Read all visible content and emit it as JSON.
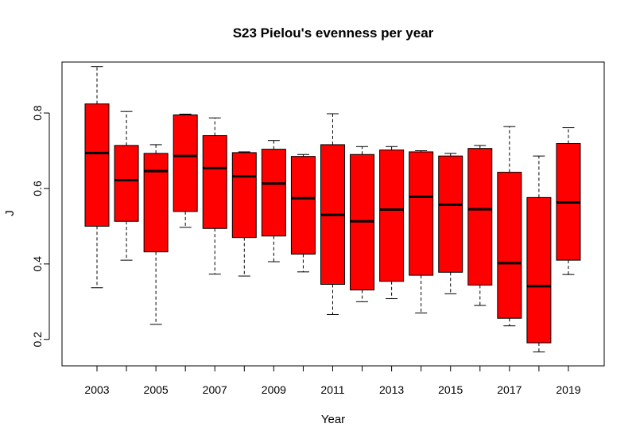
{
  "chart_data": {
    "type": "boxplot",
    "title": "S23 Pielou's evenness per year",
    "xlabel": "Year",
    "ylabel": "J",
    "ylim": [
      0.13,
      0.935
    ],
    "yticks": [
      0.2,
      0.4,
      0.6,
      0.8
    ],
    "ytick_labels": [
      "0.2",
      "0.4",
      "0.6",
      "0.8"
    ],
    "xtick_labels_shown": [
      "2003",
      "2005",
      "2007",
      "2009",
      "2011",
      "2013",
      "2015",
      "2017",
      "2019"
    ],
    "grid": false,
    "box_color": "#ff0000",
    "categories": [
      "2003",
      "2004",
      "2005",
      "2006",
      "2007",
      "2008",
      "2009",
      "2010",
      "2011",
      "2012",
      "2013",
      "2014",
      "2015",
      "2016",
      "2017",
      "2018",
      "2019"
    ],
    "series": [
      {
        "min": [
          0.337,
          0.41,
          0.24,
          0.497,
          0.373,
          0.368,
          0.406,
          0.379,
          0.266,
          0.3,
          0.308,
          0.27,
          0.321,
          0.29,
          0.236,
          0.167,
          0.372
        ],
        "q1": [
          0.5,
          0.513,
          0.432,
          0.539,
          0.494,
          0.47,
          0.474,
          0.426,
          0.346,
          0.331,
          0.354,
          0.37,
          0.378,
          0.344,
          0.256,
          0.191,
          0.41
        ],
        "median": [
          0.694,
          0.622,
          0.646,
          0.686,
          0.654,
          0.632,
          0.613,
          0.574,
          0.53,
          0.513,
          0.544,
          0.578,
          0.557,
          0.545,
          0.402,
          0.341,
          0.563
        ],
        "q3": [
          0.824,
          0.714,
          0.693,
          0.795,
          0.74,
          0.695,
          0.704,
          0.685,
          0.716,
          0.69,
          0.702,
          0.697,
          0.686,
          0.706,
          0.643,
          0.576,
          0.719
        ],
        "max": [
          0.923,
          0.804,
          0.716,
          0.797,
          0.787,
          0.697,
          0.727,
          0.69,
          0.798,
          0.711,
          0.711,
          0.7,
          0.693,
          0.714,
          0.764,
          0.686,
          0.761
        ]
      }
    ]
  }
}
